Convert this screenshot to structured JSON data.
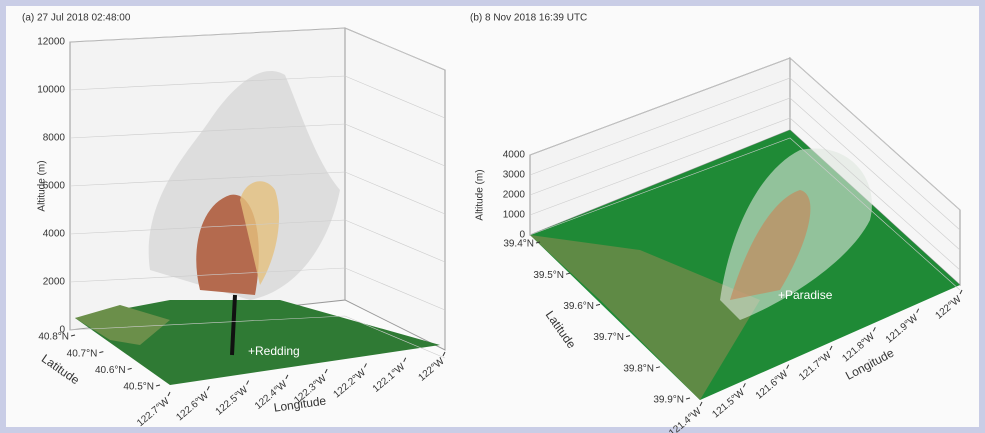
{
  "chart_data": [
    {
      "type": "surface3d",
      "title": "(a) 27 Jul 2018 02:48:00",
      "zlabel": "Altitude (m)",
      "xlabel": "Longitude",
      "ylabel": "Latitude",
      "zlim": [
        0,
        12000
      ],
      "zticks": [
        0,
        2000,
        4000,
        6000,
        8000,
        10000,
        12000
      ],
      "ylim": [
        40.8,
        40.5
      ],
      "yticks": [
        {
          "value": 40.8,
          "label": "40.8°N"
        },
        {
          "value": 40.7,
          "label": "40.7°N"
        },
        {
          "value": 40.6,
          "label": "40.6°N"
        },
        {
          "value": 40.5,
          "label": "40.5°N"
        }
      ],
      "xlim": [
        -122.7,
        -122
      ],
      "xticks": [
        {
          "value": -122.7,
          "label": "122.7°W"
        },
        {
          "value": -122.6,
          "label": "122.6°W"
        },
        {
          "value": -122.5,
          "label": "122.5°W"
        },
        {
          "value": -122.4,
          "label": "122.4°W"
        },
        {
          "value": -122.3,
          "label": "122.3°W"
        },
        {
          "value": -122.2,
          "label": "122.2°W"
        },
        {
          "value": -122.1,
          "label": "122.1°W"
        },
        {
          "value": -122,
          "label": "122°W"
        }
      ],
      "annotation": "+Redding",
      "grid": true
    },
    {
      "type": "surface3d",
      "title": "(b) 8 Nov 2018 16:39 UTC",
      "zlabel": "Altitude (m)",
      "xlabel": "Longitude",
      "ylabel": "Latitude",
      "zlim": [
        0,
        4000
      ],
      "zticks": [
        0,
        1000,
        2000,
        3000,
        4000
      ],
      "ylim": [
        39.4,
        39.9
      ],
      "yticks": [
        {
          "value": 39.4,
          "label": "39.4°N"
        },
        {
          "value": 39.5,
          "label": "39.5°N"
        },
        {
          "value": 39.6,
          "label": "39.6°N"
        },
        {
          "value": 39.7,
          "label": "39.7°N"
        },
        {
          "value": 39.8,
          "label": "39.8°N"
        },
        {
          "value": 39.9,
          "label": "39.9°N"
        }
      ],
      "xlim": [
        -121.4,
        -122
      ],
      "xticks": [
        {
          "value": -121.4,
          "label": "121.4°W"
        },
        {
          "value": -121.5,
          "label": "121.5°W"
        },
        {
          "value": -121.6,
          "label": "121.6°W"
        },
        {
          "value": -121.7,
          "label": "121.7°W"
        },
        {
          "value": -121.8,
          "label": "121.8°W"
        },
        {
          "value": -121.9,
          "label": "121.9°W"
        },
        {
          "value": -122,
          "label": "122°W"
        }
      ],
      "annotation": "+Paradise",
      "grid": true
    }
  ]
}
